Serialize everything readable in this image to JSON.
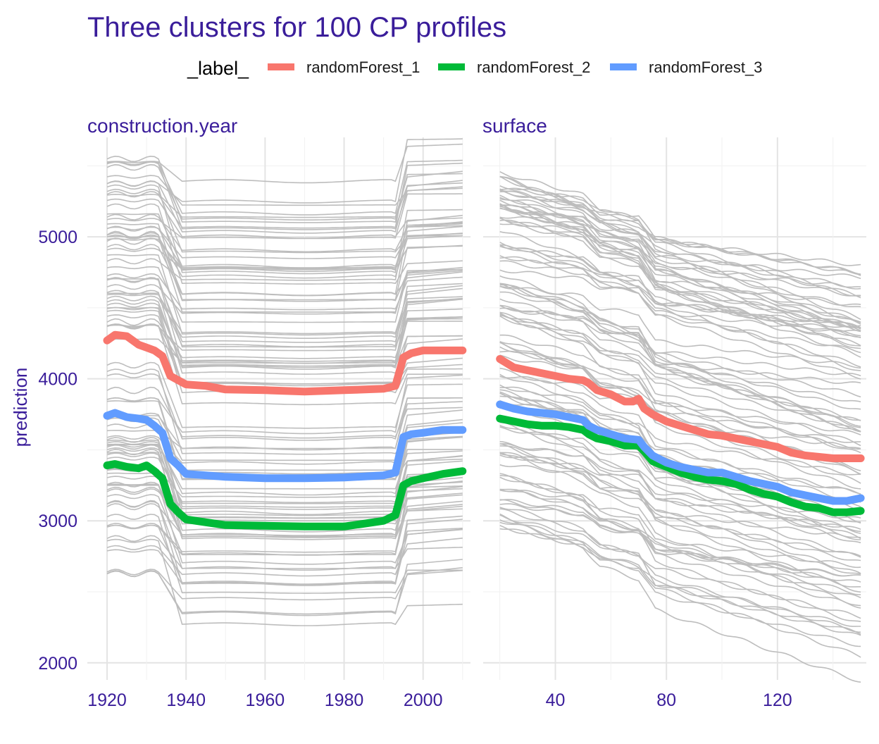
{
  "chart_data": {
    "type": "line",
    "title": "Three clusters for 100 CP profiles",
    "legend": {
      "title": "_label_",
      "placement": "top",
      "entries": [
        {
          "name": "randomForest_1",
          "color": "#F8766D"
        },
        {
          "name": "randomForest_2",
          "color": "#00BA38"
        },
        {
          "name": "randomForest_3",
          "color": "#619CFF"
        }
      ]
    },
    "ylabel": "prediction",
    "ylim": [
      1880,
      5700
    ],
    "yticks": [
      "2000",
      "3000",
      "4000",
      "5000"
    ],
    "ytick_values": [
      2000,
      3000,
      4000,
      5000
    ],
    "grid": true,
    "background_profiles": {
      "count": 100,
      "color": "#bdbdbd"
    },
    "panels": [
      {
        "name": "construction.year",
        "xlim": [
          1915,
          2012
        ],
        "xticks": [
          "1920",
          "1940",
          "1960",
          "1980",
          "2000"
        ],
        "xtick_values": [
          1920,
          1940,
          1960,
          1980,
          2000
        ],
        "x_range": [
          1920,
          2010
        ],
        "series": [
          {
            "name": "randomForest_1",
            "color": "#F8766D",
            "x": [
              1920,
              1922,
              1925,
              1928,
              1930,
              1932,
              1934,
              1936,
              1938,
              1940,
              1945,
              1950,
              1960,
              1970,
              1980,
              1990,
              1993,
              1995,
              1997,
              2000,
              2005,
              2010
            ],
            "values": [
              4270,
              4310,
              4300,
              4240,
              4220,
              4200,
              4160,
              4020,
              3990,
              3960,
              3950,
              3925,
              3920,
              3910,
              3920,
              3930,
              3950,
              4150,
              4180,
              4200,
              4200,
              4200
            ]
          },
          {
            "name": "randomForest_2",
            "color": "#00BA38",
            "x": [
              1920,
              1922,
              1925,
              1928,
              1930,
              1932,
              1934,
              1936,
              1938,
              1940,
              1945,
              1950,
              1960,
              1970,
              1980,
              1985,
              1990,
              1993,
              1995,
              1997,
              2000,
              2005,
              2010
            ],
            "values": [
              3390,
              3400,
              3380,
              3370,
              3390,
              3350,
              3300,
              3120,
              3060,
              3010,
              2990,
              2970,
              2965,
              2960,
              2960,
              2980,
              3000,
              3040,
              3250,
              3280,
              3300,
              3330,
              3350
            ]
          },
          {
            "name": "randomForest_3",
            "color": "#619CFF",
            "x": [
              1920,
              1922,
              1925,
              1928,
              1930,
              1932,
              1934,
              1936,
              1938,
              1940,
              1945,
              1950,
              1960,
              1970,
              1980,
              1990,
              1993,
              1995,
              1997,
              2000,
              2005,
              2010
            ],
            "values": [
              3740,
              3760,
              3730,
              3720,
              3710,
              3670,
              3620,
              3440,
              3390,
              3330,
              3320,
              3310,
              3300,
              3300,
              3305,
              3320,
              3340,
              3590,
              3610,
              3620,
              3640,
              3640
            ]
          }
        ]
      },
      {
        "name": "surface",
        "xlim": [
          14,
          152
        ],
        "xticks": [
          "40",
          "80",
          "120"
        ],
        "xtick_values": [
          40,
          80,
          120
        ],
        "x_range": [
          20,
          150
        ],
        "series": [
          {
            "name": "randomForest_1",
            "color": "#F8766D",
            "x": [
              20,
              25,
              30,
              35,
              40,
              45,
              50,
              52,
              55,
              60,
              65,
              68,
              70,
              72,
              75,
              80,
              85,
              90,
              95,
              100,
              105,
              110,
              115,
              120,
              125,
              130,
              135,
              140,
              145,
              150
            ],
            "values": [
              4140,
              4080,
              4060,
              4040,
              4020,
              4000,
              3990,
              3970,
              3920,
              3890,
              3840,
              3840,
              3860,
              3790,
              3750,
              3700,
              3670,
              3640,
              3610,
              3600,
              3580,
              3560,
              3540,
              3520,
              3480,
              3460,
              3450,
              3440,
              3440,
              3440
            ]
          },
          {
            "name": "randomForest_2",
            "color": "#00BA38",
            "x": [
              20,
              25,
              30,
              35,
              40,
              45,
              50,
              52,
              55,
              60,
              65,
              70,
              72,
              75,
              80,
              85,
              90,
              95,
              100,
              105,
              110,
              115,
              120,
              125,
              130,
              135,
              140,
              145,
              150
            ],
            "values": [
              3720,
              3700,
              3680,
              3670,
              3670,
              3660,
              3640,
              3610,
              3580,
              3560,
              3530,
              3530,
              3490,
              3420,
              3380,
              3340,
              3310,
              3290,
              3280,
              3260,
              3220,
              3190,
              3170,
              3130,
              3100,
              3090,
              3060,
              3060,
              3070
            ]
          },
          {
            "name": "randomForest_3",
            "color": "#619CFF",
            "x": [
              20,
              25,
              30,
              35,
              40,
              45,
              50,
              52,
              55,
              60,
              65,
              70,
              72,
              75,
              80,
              85,
              90,
              95,
              100,
              105,
              110,
              115,
              120,
              125,
              130,
              135,
              140,
              145,
              150
            ],
            "values": [
              3820,
              3790,
              3770,
              3760,
              3750,
              3730,
              3710,
              3670,
              3640,
              3610,
              3580,
              3570,
              3520,
              3460,
              3410,
              3380,
              3360,
              3340,
              3340,
              3310,
              3280,
              3260,
              3240,
              3200,
              3180,
              3160,
              3140,
              3140,
              3160
            ]
          }
        ]
      }
    ]
  }
}
